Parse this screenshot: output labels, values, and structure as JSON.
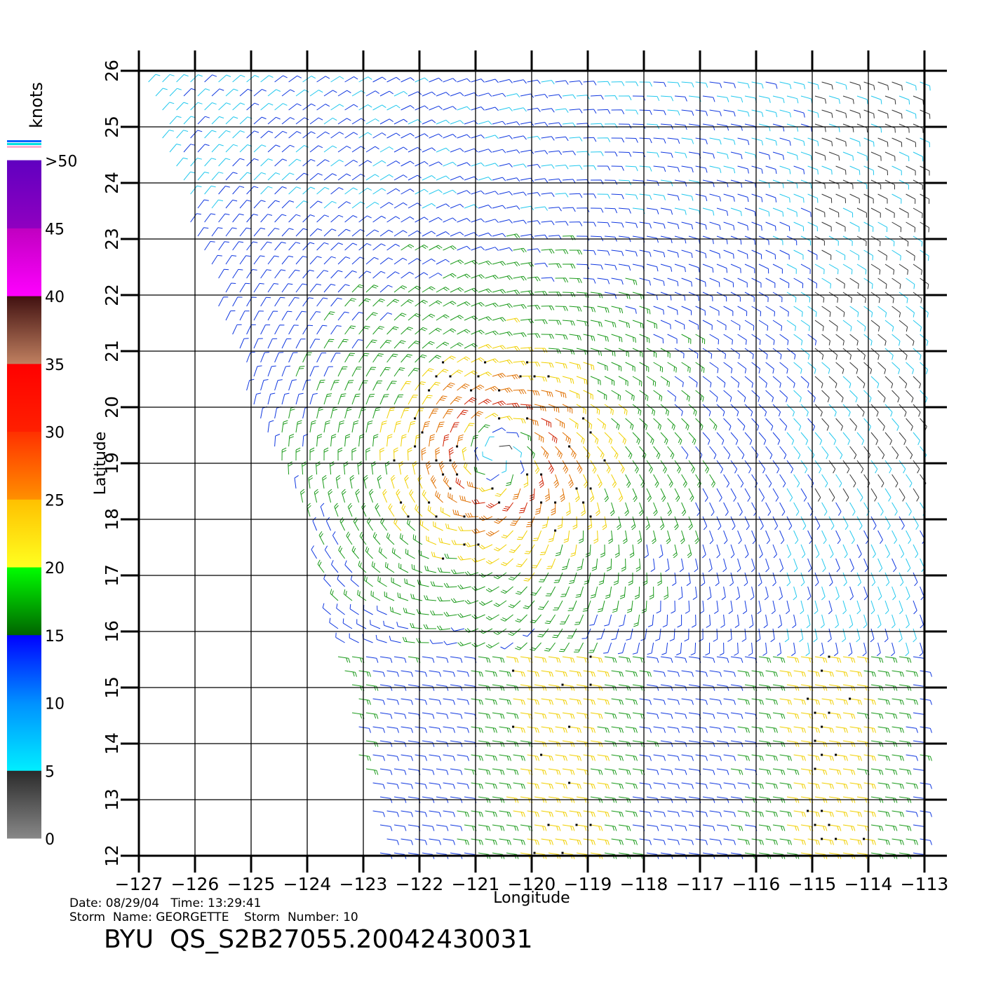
{
  "chart_data": {
    "type": "wind-barb map",
    "xlabel": "Longitude",
    "ylabel": "Latitude",
    "xlim": [
      -127,
      -113
    ],
    "ylim": [
      12,
      26
    ],
    "x_ticks": [
      "-127",
      "-126",
      "-125",
      "-124",
      "-123",
      "-122",
      "-121",
      "-120",
      "-119",
      "-118",
      "-117",
      "-116",
      "-115",
      "-114",
      "-113"
    ],
    "y_ticks": [
      "12",
      "13",
      "14",
      "15",
      "16",
      "17",
      "18",
      "19",
      "20",
      "21",
      "22",
      "23",
      "24",
      "25",
      "26"
    ],
    "grid": true,
    "colorbar": {
      "title": "knots",
      "range": [
        0,
        55
      ],
      "tick_labels": [
        {
          "value": 0,
          "label": "0"
        },
        {
          "value": 5,
          "label": "5"
        },
        {
          "value": 10,
          "label": "10"
        },
        {
          "value": 15,
          "label": "15"
        },
        {
          "value": 20,
          "label": "20"
        },
        {
          "value": 25,
          "label": "25"
        },
        {
          "value": 30,
          "label": "30"
        },
        {
          "value": 35,
          "label": "35"
        },
        {
          "value": 40,
          "label": "40"
        },
        {
          "value": 45,
          "label": "45"
        },
        {
          "value": 50,
          "label": ">50"
        }
      ],
      "bands": [
        {
          "from": 0,
          "to": 5,
          "colors": [
            "#888888",
            "#2a2a2a"
          ]
        },
        {
          "from": 5,
          "to": 10,
          "colors": [
            "#00eeff",
            "#0090ff"
          ]
        },
        {
          "from": 10,
          "to": 15,
          "colors": [
            "#0090ff",
            "#0000ff"
          ]
        },
        {
          "from": 15,
          "to": 20,
          "colors": [
            "#006400",
            "#00ff00"
          ]
        },
        {
          "from": 20,
          "to": 25,
          "colors": [
            "#ffff20",
            "#ffc000"
          ]
        },
        {
          "from": 25,
          "to": 30,
          "colors": [
            "#ff9000",
            "#ff3000"
          ]
        },
        {
          "from": 30,
          "to": 35,
          "colors": [
            "#ff2000",
            "#ff0000"
          ]
        },
        {
          "from": 35,
          "to": 40,
          "colors": [
            "#c08060",
            "#401010"
          ]
        },
        {
          "from": 40,
          "to": 45,
          "colors": [
            "#ff00ff",
            "#c000c0"
          ]
        },
        {
          "from": 45,
          "to": 50,
          "colors": [
            "#9000c0",
            "#6000c0"
          ]
        }
      ],
      "top_swatches": [
        "#0060ff",
        "#00e0e0",
        "#ffb0d0"
      ]
    },
    "storm": {
      "center_lon": -120.6,
      "center_lat": 19.2,
      "max_wind_knots": 32
    },
    "swath": {
      "west_edge_top": [
        -127,
        26
      ],
      "west_edge_mid": [
        -125,
        20
      ],
      "west_edge_low": [
        -124,
        18
      ],
      "west_edge_bottom": [
        -122.7,
        12
      ]
    }
  },
  "info": {
    "date_time": "Date: 08/29/04   Time: 13:29:41",
    "storm": "Storm  Name: GEORGETTE    Storm  Number: 10",
    "product": "BYU  QS_S2B27055.20042430031"
  }
}
